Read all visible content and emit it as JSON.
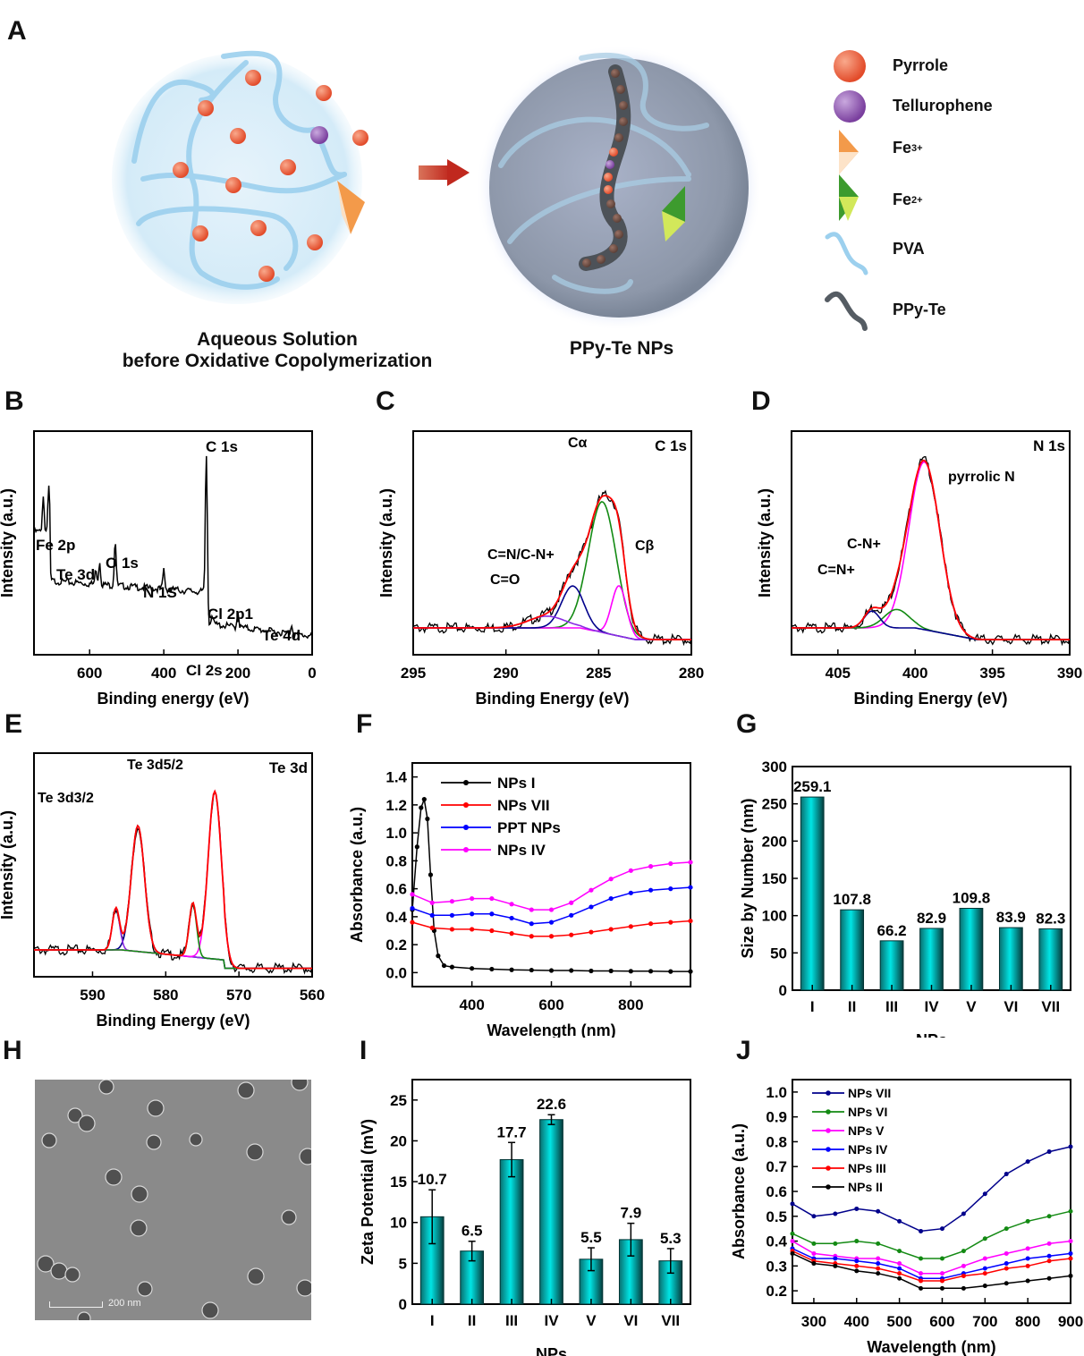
{
  "panel_labels": [
    "A",
    "B",
    "C",
    "D",
    "E",
    "F",
    "G",
    "H",
    "I",
    "J"
  ],
  "scheme": {
    "left_caption_line1": "Aqueous Solution",
    "left_caption_line2": "before Oxidative Copolymerization",
    "right_caption": "PPy-Te NPs",
    "legend": [
      {
        "label": "Pyrrole",
        "icon": "orange-sphere-icon",
        "color": "#ef6a45"
      },
      {
        "label": "Tellurophene",
        "icon": "purple-sphere-icon",
        "color": "#8c5ab0"
      },
      {
        "label": "Fe",
        "sup": "3+",
        "icon": "orange-pyramid-icon",
        "color": "#f39a4a"
      },
      {
        "label": "Fe",
        "sup": "2+",
        "icon": "green-pyramid-icon",
        "color": "#5aae3c"
      },
      {
        "label": "PVA",
        "icon": "blue-chain-icon",
        "color": "#8fc8ec"
      },
      {
        "label": "PPy-Te",
        "icon": "grey-chain-icon",
        "color": "#555c63"
      }
    ]
  },
  "tem": {
    "scale_bar": "200 nm"
  },
  "chart_data": [
    {
      "id": "B",
      "type": "line",
      "title": "",
      "xlabel": "Binding energy (eV)",
      "ylabel": "Intensity (a.u.)",
      "xlim": [
        750,
        0
      ],
      "xticks": [
        600,
        400,
        200,
        0
      ],
      "peaks": [
        {
          "x": 710,
          "h": 0.55
        },
        {
          "x": 725,
          "h": 0.45
        },
        {
          "x": 583,
          "h": 0.2
        },
        {
          "x": 573,
          "h": 0.3
        },
        {
          "x": 531,
          "h": 0.6
        },
        {
          "x": 400,
          "h": 0.25
        },
        {
          "x": 285,
          "h": 1.0
        },
        {
          "x": 270,
          "h": 0.12
        },
        {
          "x": 200,
          "h": 0.2
        },
        {
          "x": 55,
          "h": 0.12
        }
      ],
      "annotations": [
        {
          "text": "C 1s",
          "x": 285
        },
        {
          "text": "Fe 2p",
          "x": 710
        },
        {
          "text": "Te 3d",
          "x": 575
        },
        {
          "text": "O 1s",
          "x": 531
        },
        {
          "text": "N 1S",
          "x": 400
        },
        {
          "text": "Cl 2p1",
          "x": 200
        },
        {
          "text": "Te 4d",
          "x": 45
        },
        {
          "text": "Cl 2s",
          "x": 270
        }
      ]
    },
    {
      "id": "C",
      "type": "line",
      "title": "C 1s",
      "xlabel": "Binding Energy (eV)",
      "ylabel": "Intensity (a.u.)",
      "xlim": [
        295,
        280
      ],
      "xticks": [
        295,
        290,
        285,
        280
      ],
      "components": [
        {
          "name": "Cα",
          "center": 284.8,
          "height": 0.78,
          "width": 0.75,
          "color": "#138a13"
        },
        {
          "name": "Cβ",
          "center": 283.9,
          "height": 0.3,
          "width": 0.4,
          "color": "#ff00ff"
        },
        {
          "name": "C=N/C-N+",
          "center": 286.4,
          "height": 0.25,
          "width": 0.6,
          "color": "#00008b"
        },
        {
          "name": "C=O",
          "center": 287.8,
          "height": 0.07,
          "width": 1.0,
          "color": "#8a2be2"
        }
      ],
      "fit_color": "#ff0000",
      "annotations": [
        "Cα",
        "Cβ",
        "C=N/C-N+",
        "C=O"
      ]
    },
    {
      "id": "D",
      "type": "line",
      "title": "N 1s",
      "xlabel": "Binding Energy (eV)",
      "ylabel": "Intensity (a.u.)",
      "xlim": [
        408,
        390
      ],
      "xticks": [
        405,
        400,
        395,
        390
      ],
      "components": [
        {
          "name": "pyrrolic N",
          "center": 399.4,
          "height": 1.0,
          "width": 1.0,
          "color": "#ff00ff"
        },
        {
          "name": "C-N+",
          "center": 401.2,
          "height": 0.11,
          "width": 0.8,
          "color": "#138a13"
        },
        {
          "name": "C=N+",
          "center": 402.8,
          "height": 0.1,
          "width": 0.5,
          "color": "#00008b"
        }
      ],
      "fit_color": "#ff0000",
      "annotations": [
        "pyrrolic N",
        "C-N+",
        "C=N+"
      ]
    },
    {
      "id": "E",
      "type": "line",
      "title": "Te 3d",
      "xlabel": "Binding Energy (eV)",
      "ylabel": "Intensity (a.u.)",
      "xlim": [
        598,
        560
      ],
      "xticks": [
        590,
        580,
        570,
        560
      ],
      "components": [
        {
          "name": "Te 3d3/2 (a)",
          "center": 583.8,
          "height": 0.75,
          "width": 0.9,
          "color": "#00008b"
        },
        {
          "name": "Te 3d3/2 (b)",
          "center": 586.8,
          "height": 0.25,
          "width": 0.5,
          "color": "#8a2be2"
        },
        {
          "name": "Te 3d5/2 (a)",
          "center": 573.3,
          "height": 1.0,
          "width": 0.9,
          "color": "#ff00ff"
        },
        {
          "name": "Te 3d5/2 (b)",
          "center": 576.3,
          "height": 0.32,
          "width": 0.5,
          "color": "#138a13"
        }
      ],
      "fit_color": "#ff0000",
      "annotations": [
        "Te 3d3/2",
        "Te 3d5/2"
      ]
    },
    {
      "id": "F",
      "type": "line",
      "xlabel": "Wavelength (nm)",
      "ylabel": "Absorbance (a.u.)",
      "xlim": [
        250,
        950
      ],
      "ylim": [
        -0.1,
        1.5
      ],
      "xticks": [
        400,
        600,
        800
      ],
      "yticks": [
        0.0,
        0.2,
        0.4,
        0.6,
        0.8,
        1.0,
        1.2,
        1.4
      ],
      "legend_position": "top-left",
      "x": [
        250,
        300,
        350,
        400,
        450,
        500,
        550,
        600,
        650,
        700,
        750,
        800,
        850,
        900,
        950
      ],
      "series": [
        {
          "name": "NPs I",
          "color": "#000000",
          "marker": "square",
          "peak": {
            "x": 280,
            "y": 1.24
          },
          "values": [
            0.45,
            0.12,
            0.04,
            0.03,
            0.025,
            0.02,
            0.018,
            0.015,
            0.015,
            0.012,
            0.012,
            0.01,
            0.01,
            0.008,
            0.008
          ]
        },
        {
          "name": "NPs VII",
          "color": "#ff0000",
          "marker": "circle",
          "values": [
            0.36,
            0.32,
            0.31,
            0.31,
            0.3,
            0.28,
            0.26,
            0.26,
            0.27,
            0.29,
            0.31,
            0.33,
            0.35,
            0.36,
            0.37
          ]
        },
        {
          "name": "PPT NPs",
          "color": "#0000ff",
          "marker": "triangle-up",
          "values": [
            0.46,
            0.41,
            0.41,
            0.42,
            0.42,
            0.39,
            0.35,
            0.36,
            0.41,
            0.47,
            0.53,
            0.57,
            0.59,
            0.6,
            0.61
          ]
        },
        {
          "name": "NPs IV",
          "color": "#ff00ff",
          "marker": "triangle-down",
          "values": [
            0.56,
            0.5,
            0.51,
            0.53,
            0.53,
            0.49,
            0.45,
            0.45,
            0.5,
            0.59,
            0.67,
            0.73,
            0.76,
            0.78,
            0.79
          ]
        }
      ]
    },
    {
      "id": "G",
      "type": "bar",
      "xlabel": "NPs",
      "ylabel": "Size by Number (nm)",
      "ylim": [
        0,
        300
      ],
      "yticks": [
        0,
        50,
        100,
        150,
        200,
        250,
        300
      ],
      "categories": [
        "I",
        "II",
        "III",
        "IV",
        "V",
        "VI",
        "VII"
      ],
      "values": [
        259.1,
        107.8,
        66.2,
        82.9,
        109.8,
        83.9,
        82.3
      ],
      "bar_color": "#00e5e5"
    },
    {
      "id": "I",
      "type": "bar",
      "xlabel": "NPs",
      "ylabel": "Zeta Potential (mV)",
      "ylim": [
        0,
        27.5
      ],
      "yticks": [
        0,
        5,
        10,
        15,
        20,
        25
      ],
      "categories": [
        "I",
        "II",
        "III",
        "IV",
        "V",
        "VI",
        "VII"
      ],
      "values": [
        10.7,
        6.5,
        17.7,
        22.6,
        5.5,
        7.9,
        5.3
      ],
      "errors": [
        3.3,
        1.2,
        2.1,
        0.6,
        1.4,
        2.0,
        1.5
      ],
      "bar_color": "#00e5e5"
    },
    {
      "id": "J",
      "type": "line",
      "xlabel": "Wavelength (nm)",
      "ylabel": "Absorbance (a.u.)",
      "xlim": [
        250,
        900
      ],
      "ylim": [
        0.15,
        1.05
      ],
      "xticks": [
        300,
        400,
        500,
        600,
        700,
        800,
        900
      ],
      "yticks": [
        0.2,
        0.3,
        0.4,
        0.5,
        0.6,
        0.7,
        0.8,
        0.9,
        1.0
      ],
      "legend_position": "top-left",
      "x": [
        250,
        300,
        350,
        400,
        450,
        500,
        550,
        600,
        650,
        700,
        750,
        800,
        850,
        900
      ],
      "series": [
        {
          "name": "NPs VII",
          "color": "#00008b",
          "marker": "triangle-left",
          "values": [
            0.55,
            0.5,
            0.51,
            0.53,
            0.52,
            0.48,
            0.44,
            0.45,
            0.51,
            0.59,
            0.67,
            0.72,
            0.76,
            0.78
          ]
        },
        {
          "name": "NPs VI",
          "color": "#138a13",
          "marker": "diamond",
          "values": [
            0.43,
            0.39,
            0.39,
            0.4,
            0.39,
            0.36,
            0.33,
            0.33,
            0.36,
            0.41,
            0.45,
            0.48,
            0.5,
            0.52
          ]
        },
        {
          "name": "NPs V",
          "color": "#ff00ff",
          "marker": "triangle-down",
          "values": [
            0.4,
            0.35,
            0.34,
            0.33,
            0.33,
            0.31,
            0.27,
            0.27,
            0.3,
            0.33,
            0.35,
            0.37,
            0.39,
            0.4
          ]
        },
        {
          "name": "NPs IV",
          "color": "#0000ff",
          "marker": "triangle-up",
          "values": [
            0.37,
            0.33,
            0.33,
            0.32,
            0.31,
            0.29,
            0.25,
            0.25,
            0.27,
            0.29,
            0.31,
            0.33,
            0.34,
            0.35
          ]
        },
        {
          "name": "NPs III",
          "color": "#ff0000",
          "marker": "circle",
          "values": [
            0.36,
            0.32,
            0.31,
            0.3,
            0.29,
            0.27,
            0.24,
            0.24,
            0.26,
            0.27,
            0.29,
            0.3,
            0.32,
            0.33
          ]
        },
        {
          "name": "NPs II",
          "color": "#000000",
          "marker": "square",
          "values": [
            0.35,
            0.31,
            0.3,
            0.28,
            0.27,
            0.25,
            0.21,
            0.21,
            0.21,
            0.22,
            0.23,
            0.24,
            0.25,
            0.26
          ]
        }
      ]
    }
  ]
}
